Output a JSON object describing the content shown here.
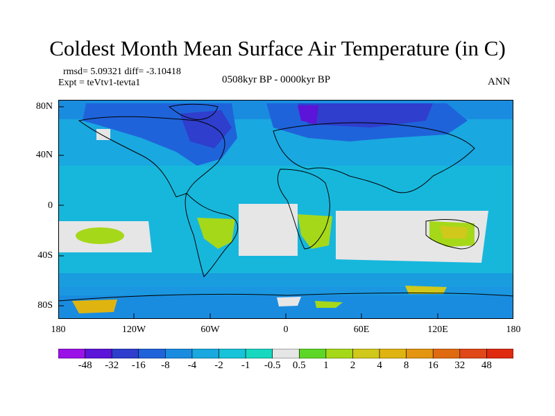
{
  "title": "Coldest Month Mean Surface Air Temperature (in C)",
  "stats": "rmsd= 5.09321 diff= -3.10418",
  "expt": "Expt = teVtv1-tevta1",
  "period": "0508kyr BP - 0000kyr BP",
  "season": "ANN",
  "y_ticks": [
    "80N",
    "40N",
    "0",
    "40S",
    "80S"
  ],
  "x_ticks": [
    "180",
    "120W",
    "60W",
    "0",
    "60E",
    "120E",
    "180"
  ],
  "colorbar": {
    "colors": [
      "#9a12e8",
      "#5b14d8",
      "#2f3ecc",
      "#1f63da",
      "#1a8ce0",
      "#19a8e0",
      "#16c3d8",
      "#18d8c0",
      "#e6e6e6",
      "#5ed626",
      "#a6d81a",
      "#d0c81a",
      "#e0b410",
      "#e39410",
      "#e06a10",
      "#e04818",
      "#e02a10"
    ],
    "labels": [
      "-48",
      "-32",
      "-16",
      "-8",
      "-4",
      "-2",
      "-1",
      "-0.5",
      "0.5",
      "1",
      "2",
      "4",
      "8",
      "16",
      "32",
      "48"
    ]
  }
}
